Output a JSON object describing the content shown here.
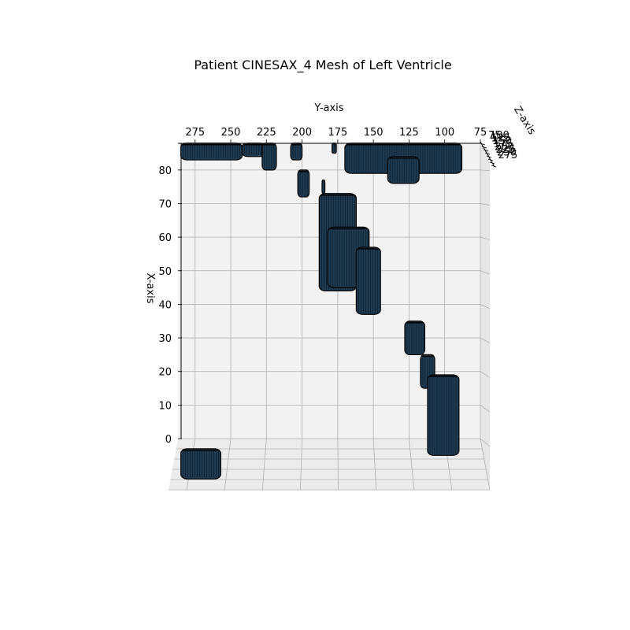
{
  "chart_data": {
    "type": "mesh3d",
    "title": "Patient CINESAX_4 Mesh of Left Ventricle",
    "xlabel": "X-axis",
    "ylabel": "Y-axis",
    "zlabel": "Z-axis",
    "x_ticks": [
      "0",
      "10",
      "20",
      "30",
      "40",
      "50",
      "60",
      "70",
      "80"
    ],
    "y_ticks": [
      "275",
      "250",
      "225",
      "200",
      "175",
      "150",
      "125",
      "100",
      "75"
    ],
    "z_ticks": [
      "100",
      "125",
      "150",
      "175",
      "200",
      "225",
      "250",
      "275"
    ],
    "xlim": [
      0,
      87
    ],
    "ylim": [
      287,
      75
    ],
    "grid": true,
    "mesh_color": "#1f3b52",
    "edge_color": "#000000",
    "pane_color": "#f2f2f2",
    "grid_color": "#b0b0b0",
    "surfaces": [
      {
        "y": [
          285,
          242
        ],
        "x": [
          83,
          88
        ]
      },
      {
        "y": [
          242,
          225
        ],
        "x": [
          84,
          88
        ]
      },
      {
        "y": [
          228,
          218
        ],
        "x": [
          80,
          88
        ]
      },
      {
        "y": [
          208,
          200
        ],
        "x": [
          83,
          88
        ]
      },
      {
        "y": [
          203,
          195
        ],
        "x": [
          72,
          80
        ]
      },
      {
        "y": [
          186,
          184
        ],
        "x": [
          73,
          77
        ]
      },
      {
        "y": [
          179,
          176
        ],
        "x": [
          85,
          88
        ]
      },
      {
        "y": [
          170,
          88
        ],
        "x": [
          79,
          88
        ]
      },
      {
        "y": [
          140,
          118
        ],
        "x": [
          76,
          84
        ]
      },
      {
        "y": [
          188,
          162
        ],
        "x": [
          44,
          73
        ]
      },
      {
        "y": [
          182,
          153
        ],
        "x": [
          45,
          63
        ]
      },
      {
        "y": [
          162,
          145
        ],
        "x": [
          37,
          57
        ]
      },
      {
        "y": [
          128,
          114
        ],
        "x": [
          25,
          35
        ]
      },
      {
        "y": [
          117,
          107
        ],
        "x": [
          15,
          25
        ]
      },
      {
        "y": [
          112,
          90
        ],
        "x": [
          -5,
          19
        ]
      },
      {
        "y": [
          285,
          257
        ],
        "x": [
          -12,
          -3
        ]
      }
    ]
  }
}
